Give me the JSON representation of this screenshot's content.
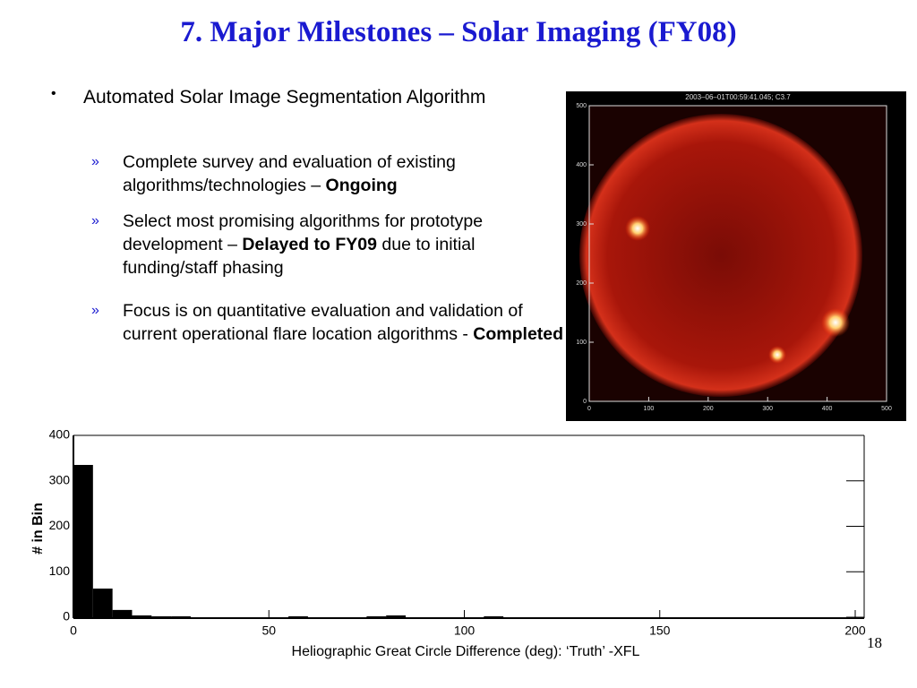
{
  "title": "7. Major Milestones – Solar Imaging (FY08)",
  "bullet": {
    "text": "Automated Solar Image Segmentation Algorithm",
    "items": [
      {
        "text": "Complete survey and evaluation of existing algorithms/technologies – ",
        "status": "Ongoing"
      },
      {
        "text": "Select most promising algorithms for prototype development – ",
        "status": "Delayed to FY09",
        "tail": " due to initial funding/staff phasing"
      },
      {
        "text": "Focus is on quantitative evaluation and validation of current operational flare location algorithms - ",
        "status": "Completed"
      }
    ]
  },
  "solar_image": {
    "title": "2003–06–01T00:59:41.045; C3.7",
    "xlim": [
      0,
      500
    ],
    "ylim": [
      0,
      500
    ],
    "xticks": [
      0,
      100,
      200,
      300,
      400,
      500
    ],
    "yticks": [
      0,
      100,
      200,
      300,
      400,
      500
    ]
  },
  "chart_data": {
    "type": "histogram",
    "xlabel": "Heliographic Great Circle Difference (deg): ‘Truth’ -XFL",
    "ylabel": "# in Bin",
    "bins": [
      0,
      5,
      10,
      15,
      20,
      25,
      30,
      35,
      40,
      45,
      50,
      55,
      60,
      65,
      70,
      75,
      80,
      85,
      90,
      95,
      100,
      105,
      110,
      115,
      120,
      125,
      130,
      135,
      140,
      145,
      150,
      155,
      160,
      165,
      170,
      175,
      180,
      185,
      190,
      195,
      200
    ],
    "values": [
      335,
      63,
      16,
      4,
      2,
      2,
      0,
      0,
      0,
      0,
      0,
      2,
      0,
      0,
      0,
      2,
      4,
      0,
      0,
      0,
      0,
      2,
      0,
      0,
      0,
      0,
      0,
      0,
      0,
      0,
      0,
      0,
      0,
      0,
      0,
      0,
      0,
      0,
      0,
      0
    ],
    "color": "#000000",
    "xlim": [
      0,
      200
    ],
    "ylim": [
      0,
      400
    ],
    "xticks": [
      0,
      50,
      100,
      150,
      200
    ],
    "yticks": [
      0,
      100,
      200,
      300,
      400
    ]
  },
  "page_number": "18"
}
